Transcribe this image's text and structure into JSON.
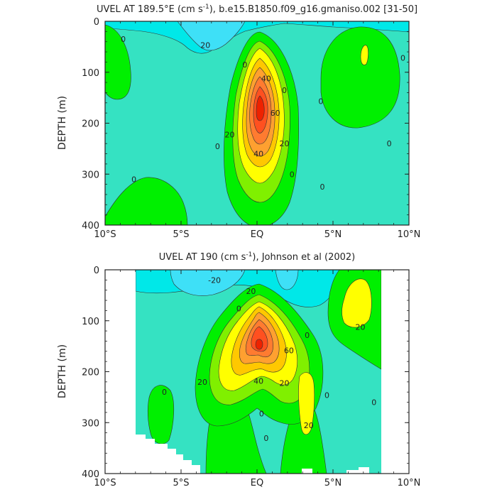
{
  "chart_data": [
    {
      "type": "contour",
      "title": "UVEL AT 189.5°E (cm s⁻¹), b.e15.B1850.f09_g16.gmaniso.002 [31-50]",
      "title_parts": {
        "pre": "UVEL AT 189.5°E (cm s",
        "sup": "-1",
        "post": "), b.e15.B1850.f09_g16.gmaniso.002 [31-50]"
      },
      "ylabel": "DEPTH (m)",
      "xlim": [
        -10,
        10
      ],
      "ylim": [
        400,
        0
      ],
      "xticks": [
        {
          "v": -10,
          "label": "10°S"
        },
        {
          "v": -5,
          "label": "5°S"
        },
        {
          "v": 0,
          "label": "EQ"
        },
        {
          "v": 5,
          "label": "5°N"
        },
        {
          "v": 10,
          "label": "10°N"
        }
      ],
      "yticks": [
        0,
        100,
        200,
        300,
        400
      ],
      "contour_labels": [
        {
          "x": -8.8,
          "y": 35,
          "text": "0"
        },
        {
          "x": -3.4,
          "y": 47,
          "text": "20"
        },
        {
          "x": -0.8,
          "y": 85,
          "text": "0"
        },
        {
          "x": 0.6,
          "y": 112,
          "text": "40"
        },
        {
          "x": 1.8,
          "y": 135,
          "text": "0"
        },
        {
          "x": 4.2,
          "y": 157,
          "text": "0"
        },
        {
          "x": 9.6,
          "y": 72,
          "text": "0"
        },
        {
          "x": 1.2,
          "y": 180,
          "text": "60"
        },
        {
          "x": -1.8,
          "y": 222,
          "text": "20"
        },
        {
          "x": -2.6,
          "y": 245,
          "text": "0"
        },
        {
          "x": 1.8,
          "y": 240,
          "text": "20"
        },
        {
          "x": 0.1,
          "y": 260,
          "text": "40"
        },
        {
          "x": 8.7,
          "y": 240,
          "text": "0"
        },
        {
          "x": 2.3,
          "y": 300,
          "text": "0"
        },
        {
          "x": 4.3,
          "y": 325,
          "text": "0"
        },
        {
          "x": -8.1,
          "y": 310,
          "text": "0"
        }
      ]
    },
    {
      "type": "contour",
      "title": "UVEL AT 190 (cm s⁻¹), Johnson et al (2002)",
      "title_parts": {
        "pre": "UVEL AT 190 (cm s",
        "sup": "-1",
        "post": "), Johnson et al (2002)"
      },
      "ylabel": "DEPTH (m)",
      "xlim": [
        -10,
        10
      ],
      "ylim": [
        400,
        0
      ],
      "xticks": [
        {
          "v": -10,
          "label": "10°S"
        },
        {
          "v": -5,
          "label": "5°S"
        },
        {
          "v": 0,
          "label": "EQ"
        },
        {
          "v": 5,
          "label": "5°N"
        },
        {
          "v": 10,
          "label": "10°N"
        }
      ],
      "yticks": [
        0,
        100,
        200,
        300,
        400
      ],
      "contour_labels": [
        {
          "x": -2.8,
          "y": 20,
          "text": "-20"
        },
        {
          "x": -0.4,
          "y": 42,
          "text": "20"
        },
        {
          "x": -1.2,
          "y": 76,
          "text": "0"
        },
        {
          "x": 3.3,
          "y": 128,
          "text": "0"
        },
        {
          "x": 6.8,
          "y": 112,
          "text": "20"
        },
        {
          "x": 2.1,
          "y": 158,
          "text": "60"
        },
        {
          "x": -3.6,
          "y": 220,
          "text": "20"
        },
        {
          "x": 0.1,
          "y": 218,
          "text": "40"
        },
        {
          "x": 1.8,
          "y": 222,
          "text": "20"
        },
        {
          "x": -6.1,
          "y": 240,
          "text": "0"
        },
        {
          "x": 4.6,
          "y": 246,
          "text": "0"
        },
        {
          "x": 7.7,
          "y": 260,
          "text": "0"
        },
        {
          "x": 0.3,
          "y": 282,
          "text": "0"
        },
        {
          "x": 3.4,
          "y": 305,
          "text": "20"
        },
        {
          "x": 0.6,
          "y": 330,
          "text": "0"
        }
      ]
    }
  ],
  "palette": {
    "neg20": "#3ee0f7",
    "neg10": "#00e8e8",
    "zero": "#35e2c2",
    "pos10": "#00f000",
    "pos20": "#80f000",
    "pos30": "#ffff00",
    "pos40": "#ffc800",
    "pos50": "#ffa030",
    "pos60": "#ff7b30",
    "pos70": "#ff5020",
    "pos80": "#ee2200"
  }
}
